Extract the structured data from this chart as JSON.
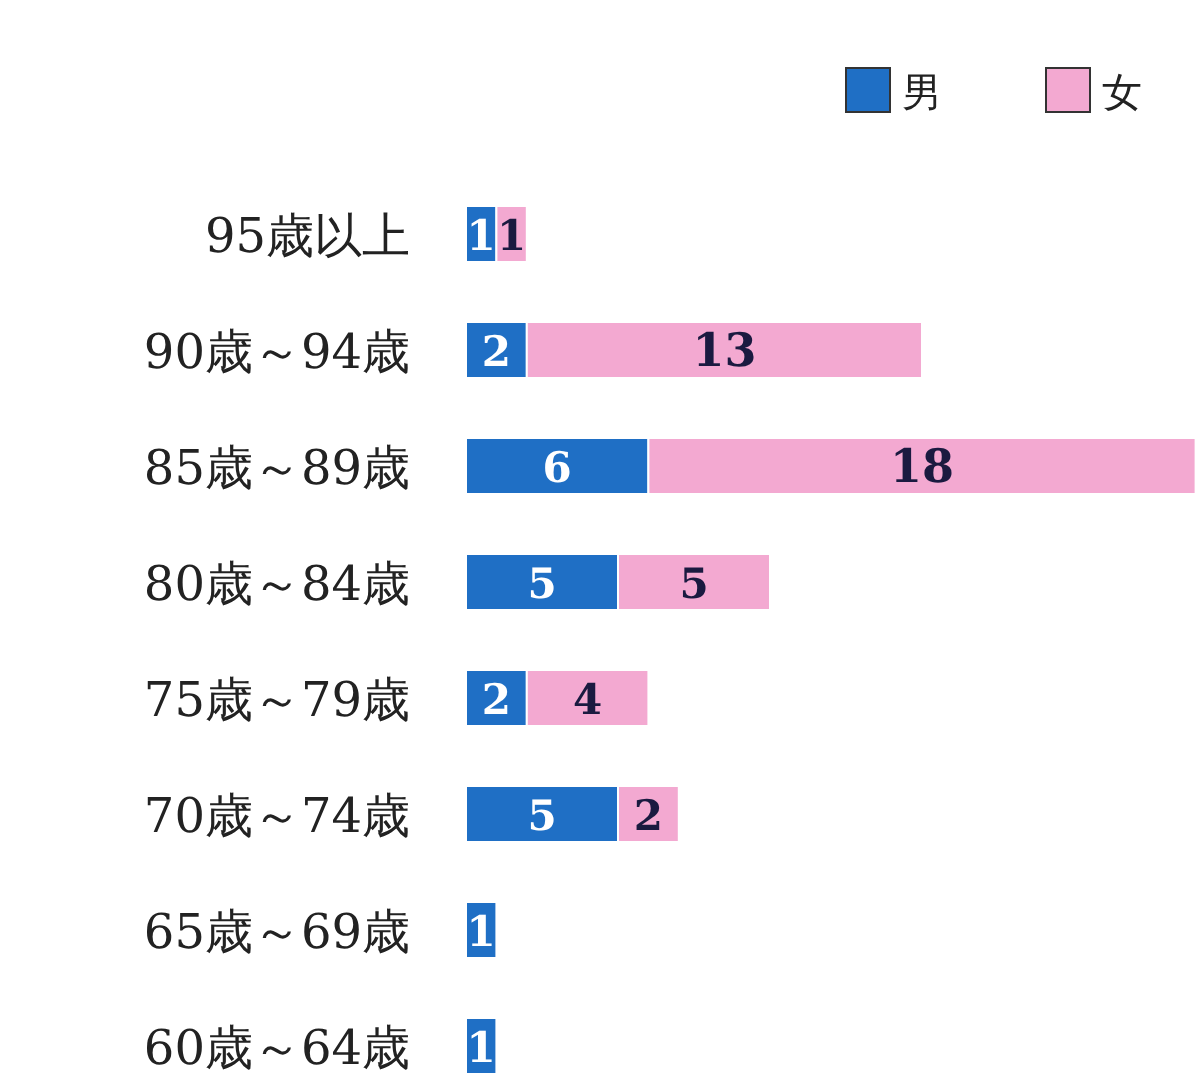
{
  "chart_data": {
    "type": "bar",
    "orientation": "horizontal",
    "stacked": true,
    "data_labels": true,
    "legend": "top right",
    "categories": [
      "95歳以上",
      "90歳～94歳",
      "85歳～89歳",
      "80歳～84歳",
      "75歳～79歳",
      "70歳～74歳",
      "65歳～69歳",
      "60歳～64歳"
    ],
    "series": [
      {
        "name": "男",
        "color": "#1f6fc5",
        "values": [
          1,
          2,
          6,
          5,
          2,
          5,
          1,
          1
        ]
      },
      {
        "name": "女",
        "color": "#f3a9d1",
        "values": [
          1,
          13,
          18,
          5,
          4,
          2,
          null,
          null
        ]
      }
    ]
  }
}
